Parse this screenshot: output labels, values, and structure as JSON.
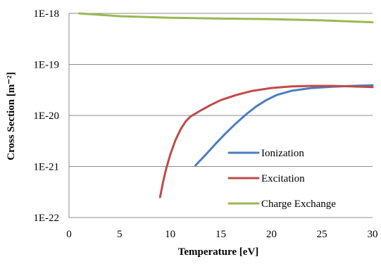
{
  "chart_data": {
    "type": "line",
    "xlabel": "Temperature [eV]",
    "ylabel": "Cross Section [m⁻²]",
    "xlim": [
      0,
      30
    ],
    "ylim": [
      1e-22,
      1e-18
    ],
    "yscale": "log",
    "grid": "horizontal",
    "legend_position": "bottom-right",
    "x_ticks": [
      "0",
      "5",
      "10",
      "15",
      "20",
      "25",
      "30"
    ],
    "y_ticks": [
      "1E-22",
      "1E-21",
      "1E-20",
      "1E-19",
      "1E-18"
    ],
    "series": [
      {
        "name": "Ionization",
        "color": "#4a7ebf",
        "points": [
          [
            12.5,
            1.05e-21
          ],
          [
            13.5,
            1.7e-21
          ],
          [
            14.5,
            2.8e-21
          ],
          [
            15.5,
            4.5e-21
          ],
          [
            16.5,
            7e-21
          ],
          [
            17.5,
            1.05e-20
          ],
          [
            18.5,
            1.5e-20
          ],
          [
            19.5,
            2e-20
          ],
          [
            20.5,
            2.5e-20
          ],
          [
            22,
            3.05e-20
          ],
          [
            24,
            3.45e-20
          ],
          [
            26,
            3.65e-20
          ],
          [
            28,
            3.8e-20
          ],
          [
            30,
            3.9e-20
          ]
        ]
      },
      {
        "name": "Excitation",
        "color": "#be4b48",
        "points": [
          [
            9.0,
            2.5e-22
          ],
          [
            9.3,
            5e-22
          ],
          [
            9.6,
            9e-22
          ],
          [
            10.0,
            1.7e-21
          ],
          [
            10.5,
            3.2e-21
          ],
          [
            11.0,
            5.2e-21
          ],
          [
            11.5,
            7.5e-21
          ],
          [
            12.0,
            9.5e-21
          ],
          [
            13.0,
            1.25e-20
          ],
          [
            14.0,
            1.6e-20
          ],
          [
            15.0,
            2e-20
          ],
          [
            16.5,
            2.5e-20
          ],
          [
            18.0,
            3e-20
          ],
          [
            20.0,
            3.45e-20
          ],
          [
            22.0,
            3.7e-20
          ],
          [
            24.0,
            3.8e-20
          ],
          [
            26.0,
            3.8e-20
          ],
          [
            28.0,
            3.7e-20
          ],
          [
            30.0,
            3.6e-20
          ]
        ]
      },
      {
        "name": "Charge Exchange",
        "color": "#98b954",
        "points": [
          [
            1,
            1e-18
          ],
          [
            5,
            8.8e-19
          ],
          [
            10,
            8.2e-19
          ],
          [
            15,
            7.9e-19
          ],
          [
            20,
            7.7e-19
          ],
          [
            25,
            7.3e-19
          ],
          [
            30,
            6.7e-19
          ]
        ]
      }
    ]
  }
}
